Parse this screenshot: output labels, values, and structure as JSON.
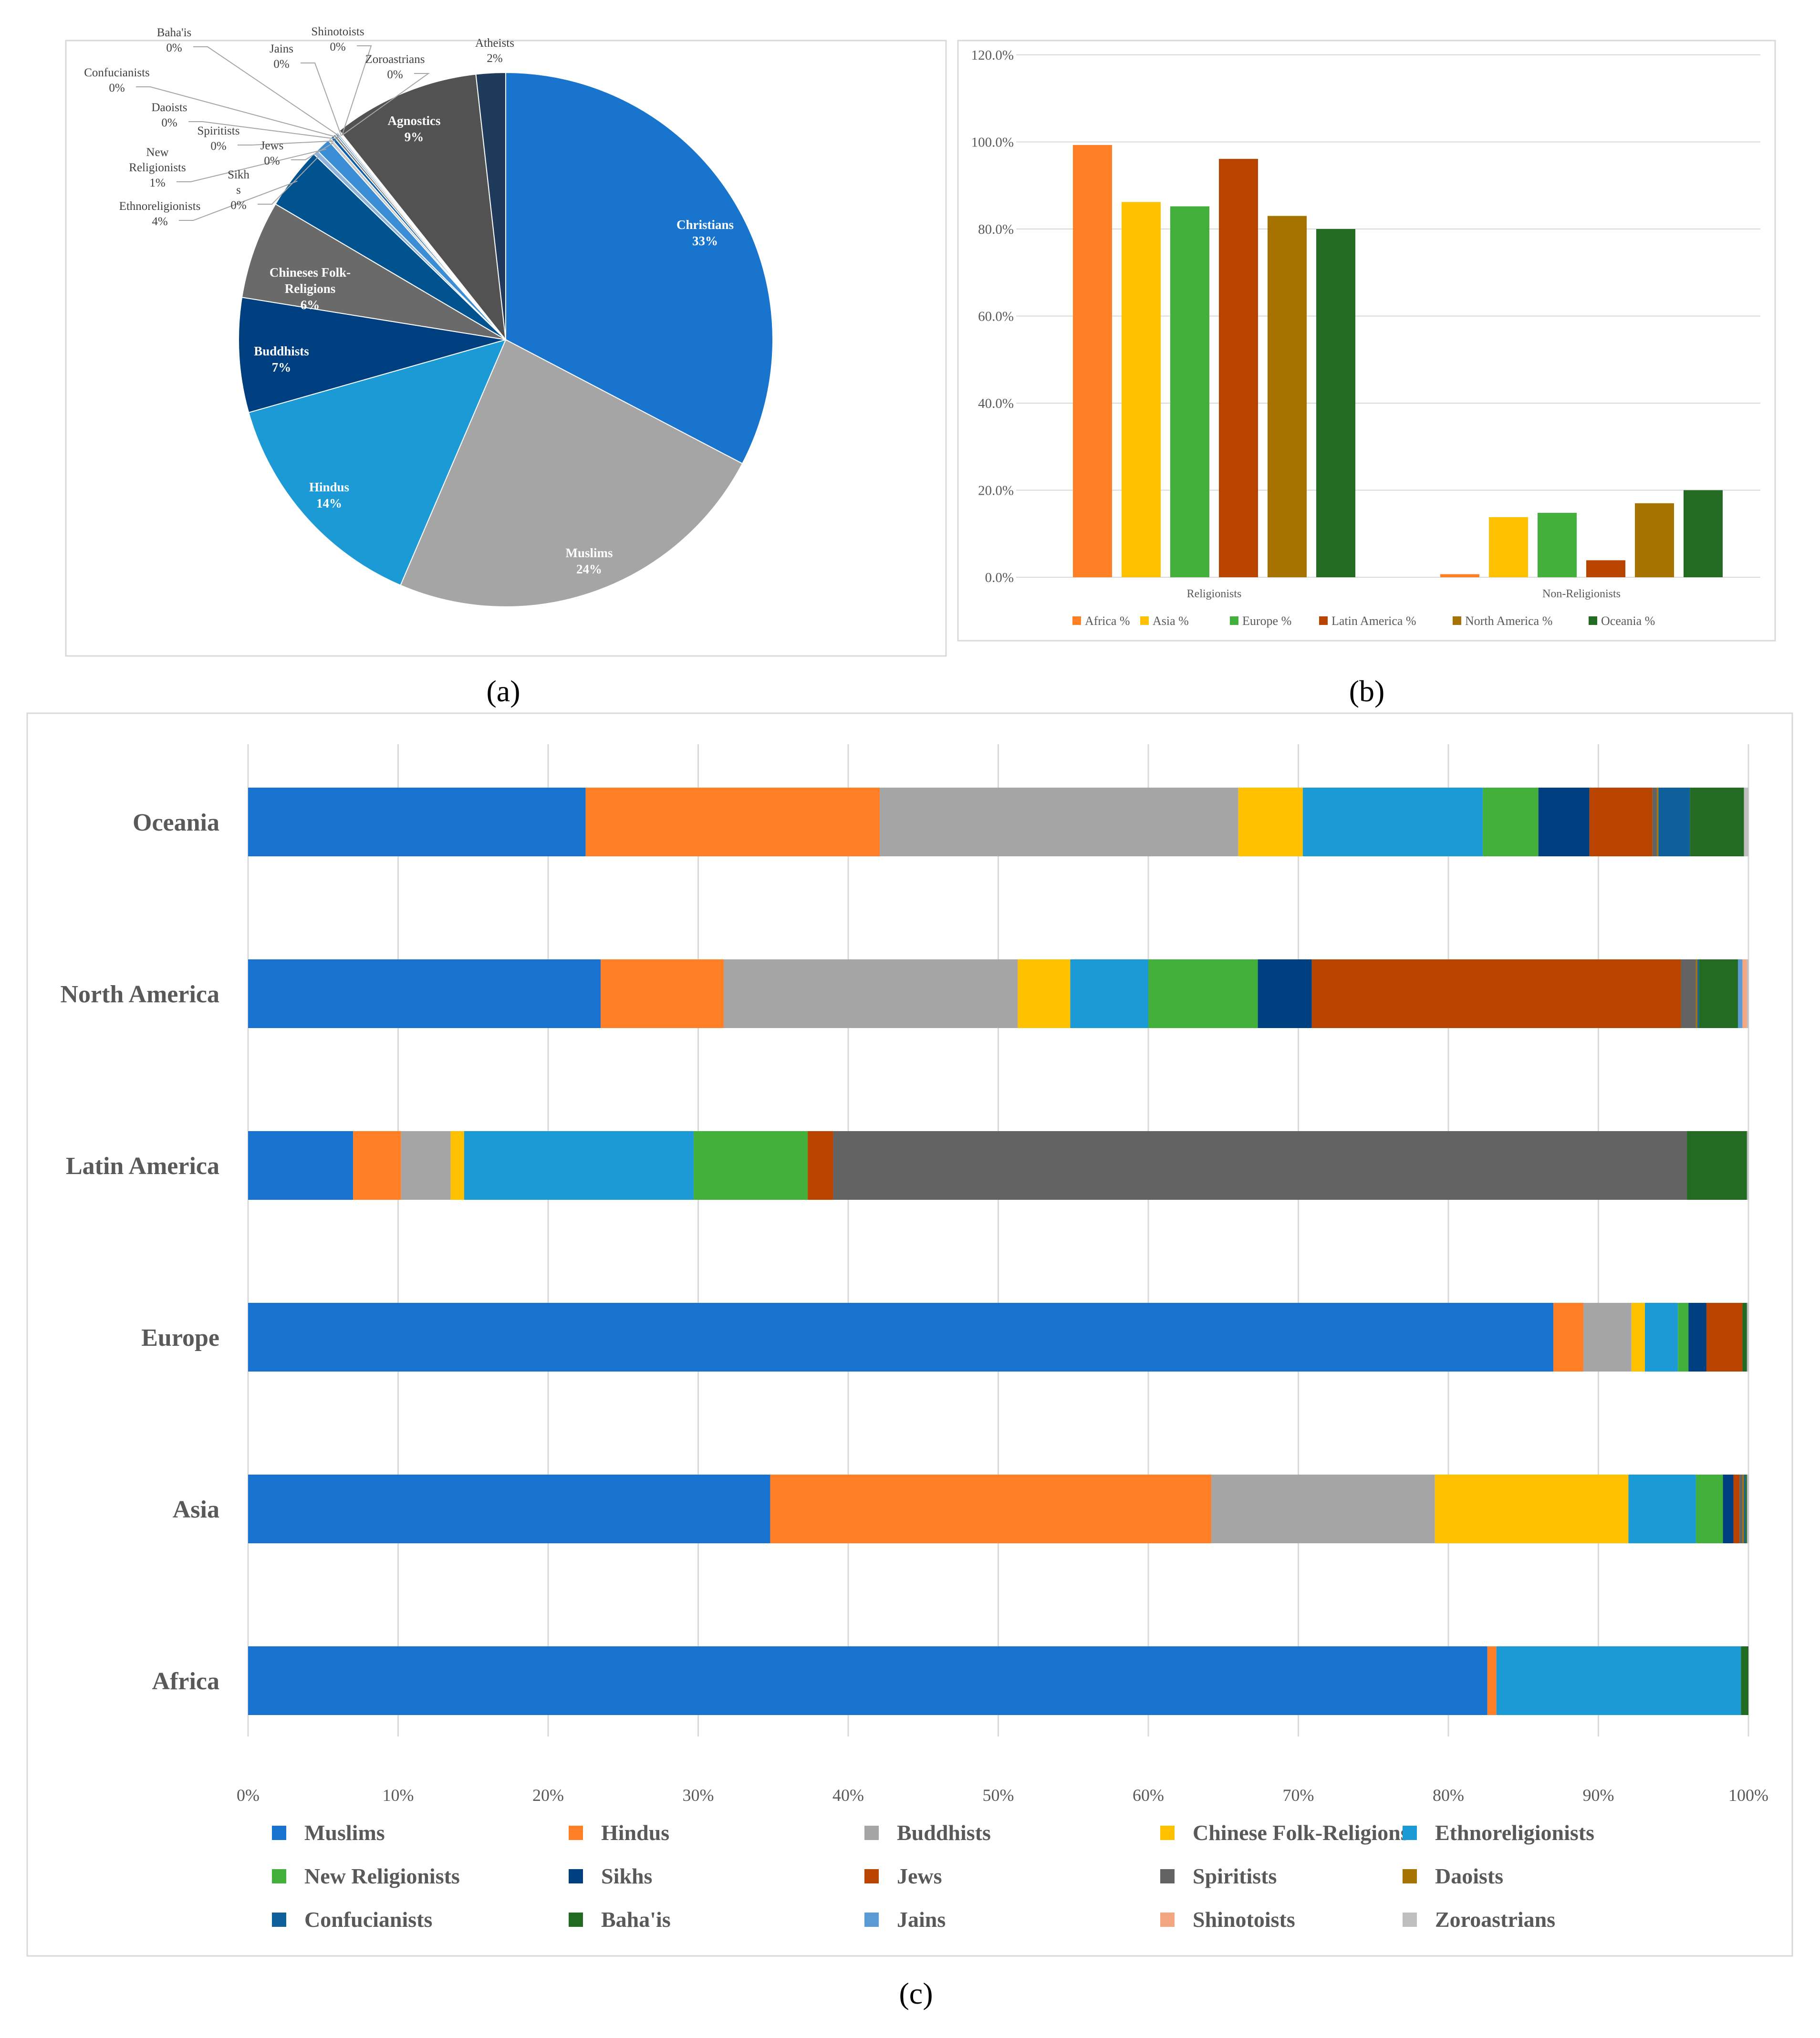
{
  "panels": {
    "a": "(a)",
    "b": "(b)",
    "c": "(c)"
  },
  "chart_data": [
    {
      "type": "pie",
      "title": "",
      "slices": [
        {
          "label": "Christians",
          "pct": "33%",
          "value": 33.0,
          "color": "#1874cd"
        },
        {
          "label": "Muslims",
          "pct": "24%",
          "value": 24.0,
          "color": "#a5a5a5"
        },
        {
          "label": "Hindus",
          "pct": "14%",
          "value": 14.3,
          "color": "#1b9ad6"
        },
        {
          "label": "Buddhists",
          "pct": "7%",
          "value": 7.0,
          "color": "#003f7f"
        },
        {
          "label": "Chineses Folk-Religions",
          "pct": "6%",
          "value": 6.0,
          "color": "#6a6a6a"
        },
        {
          "label": "Ethnoreligionists",
          "pct": "4%",
          "value": 3.8,
          "color": "#00538f"
        },
        {
          "label": "Sikhs",
          "pct": "0%",
          "value": 0.3,
          "color": "#8fb4de"
        },
        {
          "label": "New Religionists",
          "pct": "1%",
          "value": 0.9,
          "color": "#3b8ed6"
        },
        {
          "label": "Jews",
          "pct": "0%",
          "value": 0.2,
          "color": "#c9c9c9"
        },
        {
          "label": "Spiritists",
          "pct": "0%",
          "value": 0.2,
          "color": "#0b5fa8"
        },
        {
          "label": "Daoists",
          "pct": "0%",
          "value": 0.15,
          "color": "#7f7f7f"
        },
        {
          "label": "Confucianists",
          "pct": "0%",
          "value": 0.1,
          "color": "#2c6faa"
        },
        {
          "label": "Baha'is",
          "pct": "0%",
          "value": 0.1,
          "color": "#9db9d8"
        },
        {
          "label": "Jains",
          "pct": "0%",
          "value": 0.06,
          "color": "#bdbdbd"
        },
        {
          "label": "Shinotoists",
          "pct": "0%",
          "value": 0.05,
          "color": "#5c5c5c"
        },
        {
          "label": "Zoroastrians",
          "pct": "0%",
          "value": 0.03,
          "color": "#2f5f8f"
        },
        {
          "label": "Agnostics",
          "pct": "9%",
          "value": 9.0,
          "color": "#525252"
        },
        {
          "label": "Atheists",
          "pct": "2%",
          "value": 1.8,
          "color": "#1f3a5a"
        }
      ]
    },
    {
      "type": "bar",
      "title": "",
      "categories": [
        "Religionists",
        "Non-Religionists"
      ],
      "ylim": [
        0,
        120
      ],
      "yticks": [
        "0.0%",
        "20.0%",
        "40.0%",
        "60.0%",
        "80.0%",
        "100.0%",
        "120.0%"
      ],
      "series": [
        {
          "name": "Africa %",
          "color": "#ff7f27",
          "values": [
            99.3,
            0.7
          ]
        },
        {
          "name": "Asia %",
          "color": "#ffc000",
          "values": [
            86.2,
            13.8
          ]
        },
        {
          "name": "Europe %",
          "color": "#44b03c",
          "values": [
            85.2,
            14.8
          ]
        },
        {
          "name": "Latin America %",
          "color": "#b84400",
          "values": [
            96.1,
            3.9
          ]
        },
        {
          "name": "North America %",
          "color": "#a67200",
          "values": [
            83.0,
            17.0
          ]
        },
        {
          "name": "Oceania %",
          "color": "#236b23",
          "values": [
            80.0,
            20.0
          ]
        }
      ]
    },
    {
      "type": "bar",
      "orientation": "horizontal",
      "stacked": "percent",
      "title": "",
      "categories": [
        "Oceania",
        "North America",
        "Latin America",
        "Europe",
        "Asia",
        "Africa"
      ],
      "xticks": [
        "0%",
        "10%",
        "20%",
        "30%",
        "40%",
        "50%",
        "60%",
        "70%",
        "80%",
        "90%",
        "100%"
      ],
      "series": [
        {
          "name": "Muslims",
          "color": "#1773cf",
          "values": [
            22.5,
            23.5,
            7.0,
            87.0,
            34.8,
            82.6
          ]
        },
        {
          "name": "Hindus",
          "color": "#ff7f27",
          "values": [
            19.6,
            8.2,
            3.2,
            2.0,
            29.4,
            0.6
          ]
        },
        {
          "name": "Buddhists",
          "color": "#a5a5a5",
          "values": [
            23.9,
            19.6,
            3.3,
            3.2,
            14.9,
            0.0
          ]
        },
        {
          "name": "Chinese Folk-Religions",
          "color": "#ffc000",
          "values": [
            4.3,
            3.5,
            0.9,
            0.9,
            12.9,
            0.0
          ]
        },
        {
          "name": "Ethnoreligionists",
          "color": "#1b9ad6",
          "values": [
            12.0,
            5.2,
            15.3,
            2.2,
            4.5,
            16.3
          ]
        },
        {
          "name": "New Religionists",
          "color": "#44b03c",
          "values": [
            3.7,
            7.3,
            7.6,
            0.7,
            1.8,
            0.0
          ]
        },
        {
          "name": "Sikhs",
          "color": "#003f7f",
          "values": [
            3.4,
            3.6,
            0.0,
            1.2,
            0.7,
            0.0
          ]
        },
        {
          "name": "Jews",
          "color": "#b84400",
          "values": [
            4.2,
            24.6,
            1.7,
            2.4,
            0.4,
            0.0
          ]
        },
        {
          "name": "Spiritists",
          "color": "#636363",
          "values": [
            0.3,
            1.0,
            56.9,
            0.0,
            0.2,
            0.0
          ]
        },
        {
          "name": "Daoists",
          "color": "#a67200",
          "values": [
            0.1,
            0.1,
            0.0,
            0.0,
            0.1,
            0.0
          ]
        },
        {
          "name": "Confucianists",
          "color": "#0f5f9a",
          "values": [
            2.1,
            0.1,
            0.0,
            0.0,
            0.1,
            0.0
          ]
        },
        {
          "name": "Baha'is",
          "color": "#236b23",
          "values": [
            3.6,
            2.6,
            4.0,
            0.3,
            0.1,
            0.5
          ]
        },
        {
          "name": "Jains",
          "color": "#5b9bd5",
          "values": [
            0.0,
            0.3,
            0.0,
            0.0,
            0.0,
            0.0
          ]
        },
        {
          "name": "Shinotoists",
          "color": "#f4a582",
          "values": [
            0.0,
            0.3,
            0.0,
            0.0,
            0.0,
            0.0
          ]
        },
        {
          "name": "Zoroastrians",
          "color": "#bfbfbf",
          "values": [
            0.3,
            0.1,
            0.1,
            0.1,
            0.1,
            0.0
          ]
        }
      ]
    }
  ]
}
